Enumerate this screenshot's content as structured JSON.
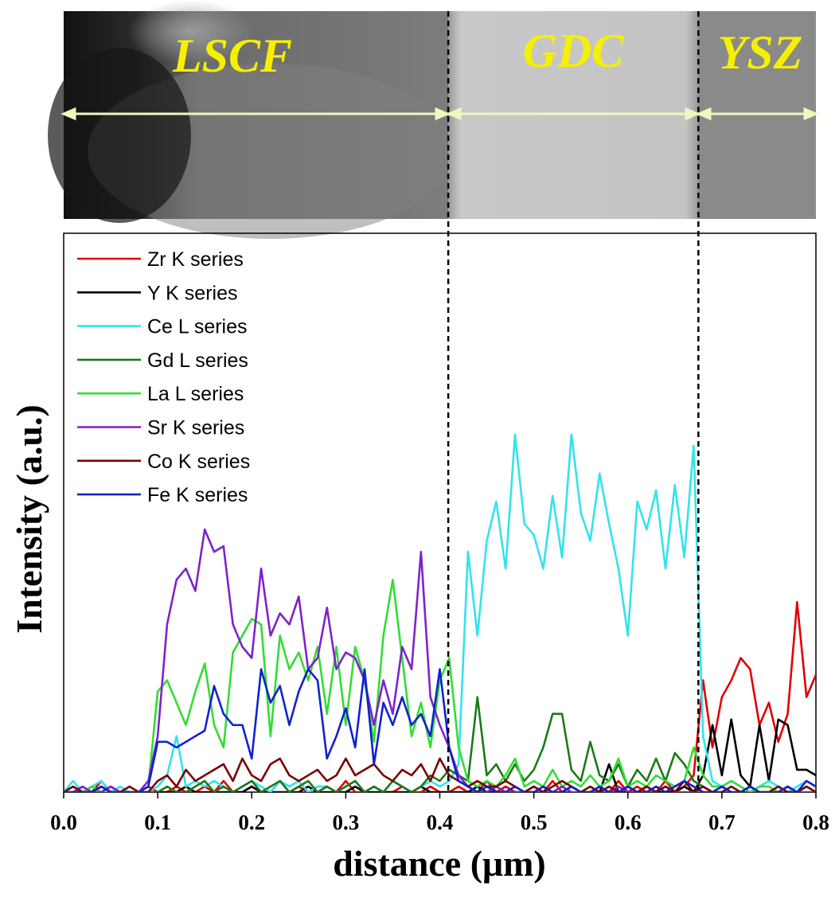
{
  "chart_data": {
    "type": "line",
    "xlabel": "distance (μm)",
    "ylabel": "Intensity (a.u.)",
    "region_labels": [
      "LSCF",
      "GDC",
      "YSZ"
    ],
    "boundaries": [
      0.409,
      0.675
    ],
    "xlim": [
      0,
      0.8
    ],
    "ylim": [
      0,
      100
    ],
    "xticks": [
      {
        "value": 0,
        "label": "0.0"
      },
      0.1,
      0.2,
      0.3,
      0.4,
      0.5,
      0.6,
      0.7,
      0.8
    ],
    "x": [
      0,
      0.01,
      0.02,
      0.03,
      0.04,
      0.05,
      0.06,
      0.07,
      0.08,
      0.09,
      0.1,
      0.11,
      0.12,
      0.13,
      0.14,
      0.15,
      0.16,
      0.17,
      0.18,
      0.19,
      0.2,
      0.21,
      0.22,
      0.23,
      0.24,
      0.25,
      0.26,
      0.27,
      0.28,
      0.29,
      0.3,
      0.31,
      0.32,
      0.33,
      0.34,
      0.35,
      0.36,
      0.37,
      0.38,
      0.39,
      0.4,
      0.41,
      0.42,
      0.43,
      0.44,
      0.45,
      0.46,
      0.47,
      0.48,
      0.49,
      0.5,
      0.51,
      0.52,
      0.53,
      0.54,
      0.55,
      0.56,
      0.57,
      0.58,
      0.59,
      0.6,
      0.61,
      0.62,
      0.63,
      0.64,
      0.65,
      0.66,
      0.67,
      0.68,
      0.69,
      0.7,
      0.71,
      0.72,
      0.73,
      0.74,
      0.75,
      0.76,
      0.77,
      0.78,
      0.79,
      0.8
    ],
    "series": [
      {
        "name": "Zr K series",
        "color": "#e00000",
        "values": [
          0,
          1,
          0,
          0,
          2,
          0,
          0,
          0,
          0,
          1,
          0,
          0,
          1,
          0,
          0,
          1,
          0,
          2,
          0,
          0,
          1,
          0,
          0,
          2,
          0,
          1,
          0,
          0,
          1,
          0,
          2,
          0,
          0,
          1,
          0,
          0,
          1,
          0,
          0,
          1,
          0,
          0,
          1,
          0,
          0,
          2,
          0,
          1,
          0,
          0,
          1,
          0,
          2,
          0,
          1,
          0,
          0,
          1,
          0,
          2,
          0,
          1,
          0,
          0,
          2,
          0,
          1,
          3,
          20,
          8,
          17,
          20,
          24,
          22,
          12,
          16,
          9,
          14,
          34,
          17,
          21
        ]
      },
      {
        "name": "Y K series",
        "color": "#000000",
        "values": [
          0,
          0,
          0,
          0,
          1,
          0,
          0,
          0,
          0,
          0,
          0,
          0,
          0,
          1,
          0,
          0,
          0,
          0,
          0,
          0,
          1,
          0,
          0,
          0,
          0,
          0,
          1,
          0,
          0,
          0,
          0,
          1,
          0,
          0,
          0,
          0,
          0,
          0,
          1,
          0,
          0,
          0,
          0,
          0,
          1,
          0,
          0,
          0,
          0,
          0,
          0,
          0,
          0,
          0,
          1,
          0,
          0,
          0,
          5,
          0,
          0,
          0,
          1,
          0,
          0,
          0,
          1,
          0,
          3,
          12,
          3,
          13,
          3,
          1,
          12,
          2,
          13,
          12,
          4,
          4,
          3
        ]
      },
      {
        "name": "Ce L series",
        "color": "#33e3ea",
        "values": [
          0,
          2,
          0,
          1,
          2,
          0,
          1,
          0,
          0,
          0,
          1,
          3,
          10,
          1,
          2,
          1,
          2,
          1,
          0,
          1,
          2,
          1,
          0,
          2,
          1,
          2,
          0,
          1,
          1,
          0,
          1,
          2,
          0,
          1,
          0,
          2,
          1,
          0,
          1,
          2,
          1,
          2,
          5,
          43,
          28,
          45,
          52,
          40,
          64,
          48,
          46,
          40,
          53,
          42,
          64,
          50,
          45,
          57,
          48,
          40,
          28,
          52,
          47,
          54,
          40,
          55,
          42,
          62,
          10,
          2,
          1,
          2,
          1,
          0,
          1,
          2,
          1,
          0,
          1,
          2,
          1
        ]
      },
      {
        "name": "Gd L series",
        "color": "#1a7a1a",
        "values": [
          0,
          0,
          0,
          0,
          0,
          1,
          0,
          0,
          0,
          0,
          0,
          1,
          0,
          0,
          1,
          2,
          0,
          1,
          0,
          1,
          2,
          0,
          1,
          2,
          0,
          1,
          2,
          0,
          1,
          0,
          1,
          2,
          0,
          1,
          0,
          2,
          1,
          0,
          1,
          3,
          2,
          4,
          3,
          2,
          17,
          3,
          5,
          2,
          5,
          2,
          4,
          8,
          14,
          14,
          4,
          2,
          9,
          3,
          2,
          5,
          1,
          4,
          2,
          6,
          2,
          7,
          5,
          2,
          1,
          0,
          1,
          0,
          0,
          1,
          0,
          0,
          1,
          0,
          0,
          1,
          0
        ]
      },
      {
        "name": "La L series",
        "color": "#33dd33",
        "values": [
          0,
          0,
          0,
          1,
          0,
          0,
          0,
          0,
          0,
          1,
          18,
          20,
          16,
          12,
          18,
          23,
          12,
          8,
          25,
          28,
          31,
          30,
          10,
          28,
          22,
          25,
          20,
          26,
          14,
          26,
          12,
          26,
          20,
          9,
          28,
          38,
          24,
          10,
          16,
          8,
          20,
          24,
          8,
          2,
          1,
          2,
          1,
          3,
          6,
          1,
          2,
          1,
          4,
          1,
          2,
          1,
          3,
          1,
          2,
          6,
          1,
          2,
          1,
          3,
          2,
          1,
          2,
          8,
          3,
          1,
          1,
          2,
          1,
          0,
          1,
          1,
          0,
          1,
          0,
          1,
          0
        ]
      },
      {
        "name": "Sr K series",
        "color": "#7f22cc",
        "values": [
          0,
          0,
          1,
          0,
          0,
          1,
          0,
          0,
          0,
          2,
          10,
          30,
          38,
          40,
          36,
          47,
          43,
          44,
          30,
          26,
          24,
          40,
          28,
          32,
          30,
          35,
          22,
          24,
          33,
          22,
          25,
          24,
          20,
          12,
          20,
          14,
          26,
          22,
          43,
          17,
          12,
          8,
          3,
          1,
          0,
          0,
          1,
          0,
          0,
          0,
          0,
          0,
          0,
          1,
          0,
          0,
          0,
          0,
          0,
          1,
          0,
          0,
          0,
          0,
          1,
          0,
          0,
          0,
          0,
          0,
          0,
          0,
          0,
          1,
          0,
          0,
          0,
          1,
          0,
          0,
          0
        ]
      },
      {
        "name": "Co K series",
        "color": "#7a0000",
        "values": [
          0,
          1,
          0,
          0,
          1,
          0,
          0,
          1,
          0,
          0,
          2,
          3,
          1,
          4,
          2,
          3,
          4,
          5,
          2,
          6,
          3,
          2,
          5,
          6,
          3,
          2,
          3,
          4,
          2,
          3,
          6,
          3,
          4,
          5,
          3,
          2,
          4,
          3,
          5,
          2,
          6,
          3,
          2,
          1,
          2,
          1,
          1,
          2,
          1,
          0,
          1,
          0,
          1,
          2,
          1,
          0,
          1,
          0,
          1,
          0,
          1,
          0,
          1,
          0,
          1,
          0,
          2,
          0,
          1,
          0,
          0,
          1,
          0,
          1,
          0,
          0,
          1,
          0,
          0,
          1,
          0
        ]
      },
      {
        "name": "Fe K series",
        "color": "#1122cc",
        "values": [
          0,
          0,
          0,
          0,
          1,
          0,
          0,
          0,
          0,
          1,
          9,
          9,
          8,
          9,
          10,
          11,
          19,
          14,
          12,
          12,
          6,
          22,
          16,
          19,
          12,
          18,
          22,
          20,
          6,
          10,
          15,
          8,
          22,
          5,
          16,
          12,
          17,
          12,
          14,
          10,
          22,
          8,
          2,
          1,
          0,
          1,
          0,
          0,
          1,
          0,
          0,
          1,
          0,
          0,
          1,
          0,
          0,
          1,
          0,
          0,
          1,
          0,
          0,
          1,
          0,
          1,
          2,
          1,
          0,
          0,
          1,
          0,
          0,
          1,
          0,
          0,
          0,
          1,
          0,
          2,
          1
        ]
      }
    ]
  }
}
